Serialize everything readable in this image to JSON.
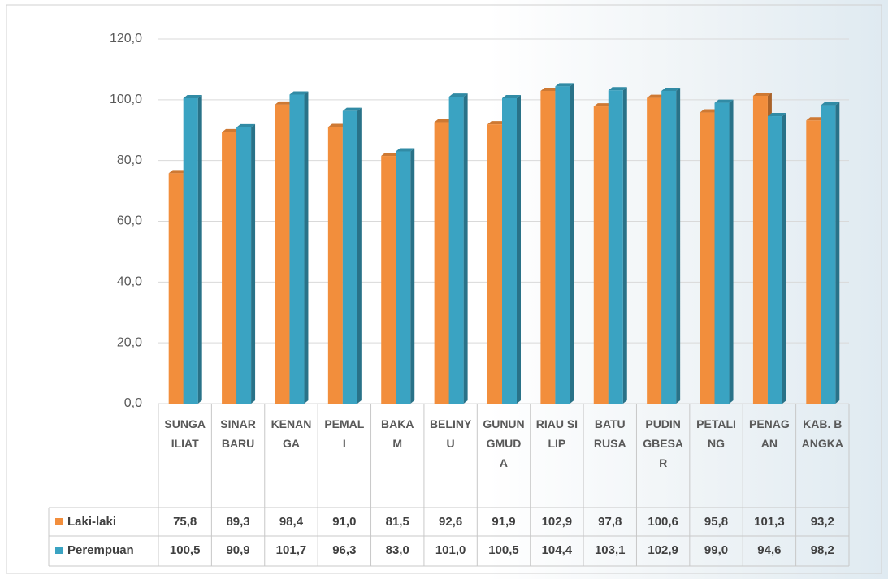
{
  "chart_data": {
    "type": "bar",
    "categories": [
      "SUNGAILIAT",
      "SINAR BARU",
      "KENANGA",
      "PEMALI",
      "BAKAM",
      "BELINYU",
      "GUNUNGMUDA",
      "RIAU SILIP",
      "BATU RUSA",
      "PUDINGBESAR",
      "PETALING",
      "PENAGAN",
      "KAB. BANGKA"
    ],
    "series": [
      {
        "name": "Laki-laki",
        "color": "#f28e3c",
        "values": [
          75.8,
          89.3,
          98.4,
          91.0,
          81.5,
          92.6,
          91.9,
          102.9,
          97.8,
          100.6,
          95.8,
          101.3,
          93.2
        ],
        "value_labels": [
          "75,8",
          "89,3",
          "98,4",
          "91,0",
          "81,5",
          "92,6",
          "91,9",
          "102,9",
          "97,8",
          "100,6",
          "95,8",
          "101,3",
          "93,2"
        ]
      },
      {
        "name": "Perempuan",
        "color": "#3aa3c2",
        "values": [
          100.5,
          90.9,
          101.7,
          96.3,
          83.0,
          101.0,
          100.5,
          104.4,
          103.1,
          102.9,
          99.0,
          94.6,
          98.2
        ],
        "value_labels": [
          "100,5",
          "90,9",
          "101,7",
          "96,3",
          "83,0",
          "101,0",
          "100,5",
          "104,4",
          "103,1",
          "102,9",
          "99,0",
          "94,6",
          "98,2"
        ]
      }
    ],
    "ylim": [
      0,
      120
    ],
    "yticks": [
      {
        "value": 0,
        "label": "0,0"
      },
      {
        "value": 20,
        "label": "20,0"
      },
      {
        "value": 40,
        "label": "40,0"
      },
      {
        "value": 60,
        "label": "60,0"
      },
      {
        "value": 80,
        "label": "80,0"
      },
      {
        "value": 100,
        "label": "100,0"
      },
      {
        "value": 120,
        "label": "120,0"
      }
    ],
    "grid": true
  }
}
